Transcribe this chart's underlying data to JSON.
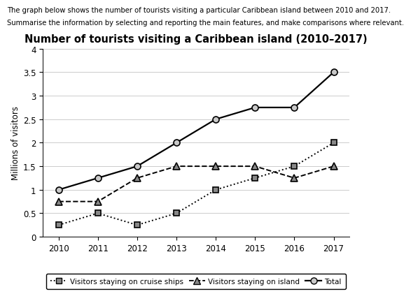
{
  "title": "Number of tourists visiting a Caribbean island (2010–2017)",
  "subtitle_line1": "The graph below shows the number of tourists visiting a particular Caribbean island between 2010 and 2017.",
  "subtitle_line2": "Summarise the information by selecting and reporting the main features, and make comparisons where relevant.",
  "ylabel": "Millions of visitors",
  "years": [
    2010,
    2011,
    2012,
    2013,
    2014,
    2015,
    2016,
    2017
  ],
  "cruise_ships": [
    0.25,
    0.5,
    0.25,
    0.5,
    1.0,
    1.25,
    1.5,
    2.0
  ],
  "island": [
    0.75,
    0.75,
    1.25,
    1.5,
    1.5,
    1.5,
    1.25,
    1.5
  ],
  "total": [
    1.0,
    1.25,
    1.5,
    2.0,
    2.5,
    2.75,
    2.75,
    3.5
  ],
  "ylim": [
    0,
    4
  ],
  "yticks": [
    0,
    0.5,
    1.0,
    1.5,
    2.0,
    2.5,
    3.0,
    3.5,
    4.0
  ],
  "bg_color": "#ffffff",
  "grid_color": "#cccccc",
  "line_color": "#000000",
  "marker_face_circle": "#c8c8c8",
  "marker_face_other": "#888888"
}
